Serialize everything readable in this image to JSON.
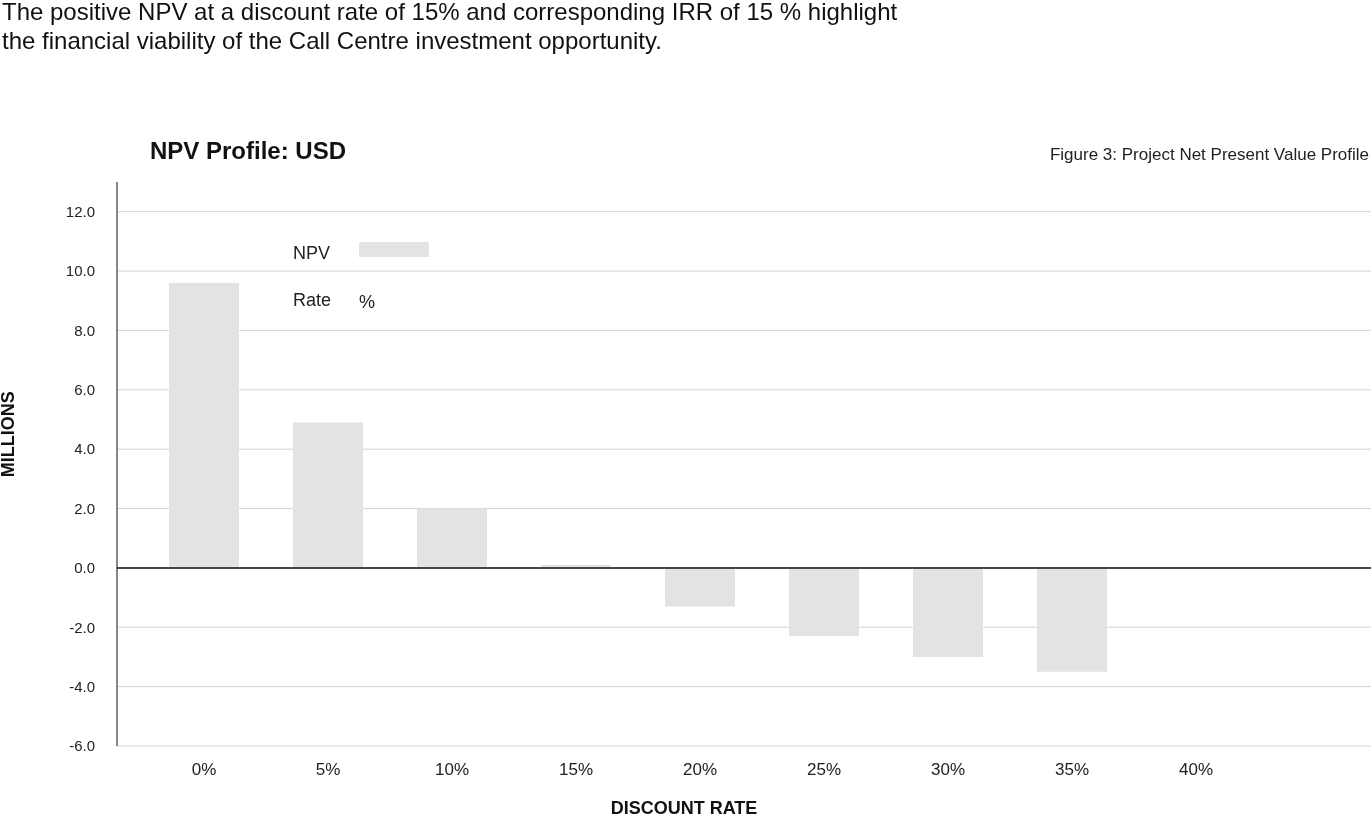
{
  "chart_data": {
    "type": "bar",
    "title": "NPV Profile: USD",
    "subtitle": "Figure 3: Project Net Present Value Profile",
    "xlabel": "DISCOUNT RATE",
    "ylabel": "MILLIONS",
    "annotations": [
      "The positive NPV at a discount rate of 15% and corresponding IRR of 15 % highlight the financial viability of the Call Centre investment opportunity.",
      "Rate",
      "%"
    ],
    "categories": [
      "0%",
      "5%",
      "10%",
      "15%",
      "20%",
      "25%",
      "30%",
      "35%",
      "40%"
    ],
    "series": [
      {
        "name": "NPV",
        "color": "#e3e3e1",
        "values": [
          9.6,
          4.9,
          2.0,
          0.1,
          -1.3,
          -2.3,
          -3.0,
          -3.5,
          null
        ]
      }
    ],
    "ylim": [
      -6,
      13
    ],
    "yticks": [
      {
        "value": 12,
        "label": "12.0"
      },
      {
        "value": 10,
        "label": "10.0"
      },
      {
        "value": 8,
        "label": "8.0"
      },
      {
        "value": 6,
        "label": "6.0"
      },
      {
        "value": 4,
        "label": "4.0"
      },
      {
        "value": 2,
        "label": "2.0"
      },
      {
        "value": 0,
        "label": "0.0"
      },
      {
        "value": -2,
        "label": "-2.0"
      },
      {
        "value": -4,
        "label": "-4.0"
      },
      {
        "value": -6,
        "label": "-6.0"
      }
    ],
    "grid": "y",
    "legend": "top left"
  }
}
